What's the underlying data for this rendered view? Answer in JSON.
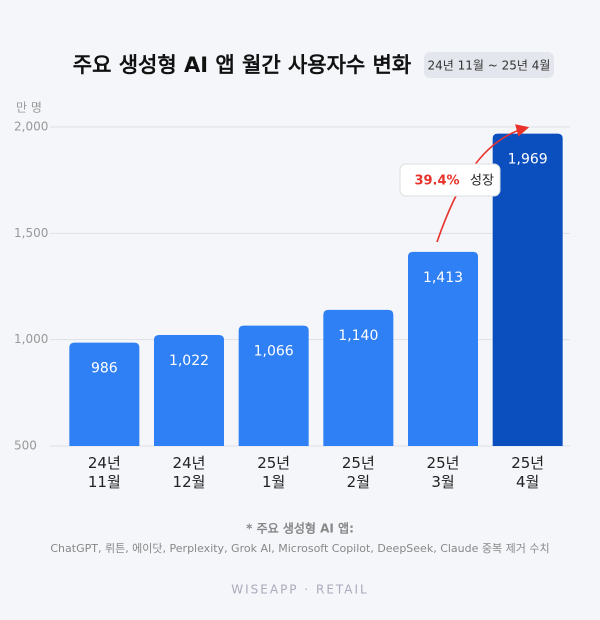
{
  "chart_data": {
    "type": "bar",
    "title": "주요 생성형 AI 앱 월간 사용자수 변화",
    "subtitle": "24년 11월 ~ 25년 4월",
    "y_unit": "만 명",
    "categories": [
      "24년\n11월",
      "24년\n12월",
      "25년\n1월",
      "25년\n2월",
      "25년\n3월",
      "25년\n4월"
    ],
    "values": [
      986,
      1022,
      1066,
      1140,
      1413,
      1969
    ],
    "value_labels": [
      "986",
      "1,022",
      "1,066",
      "1,140",
      "1,413",
      "1,969"
    ],
    "colors": [
      "#2f7ff5",
      "#2f7ff5",
      "#2f7ff5",
      "#2f7ff5",
      "#2f7ff5",
      "#0b4fbf"
    ],
    "ylim": [
      500,
      2000
    ],
    "yticks": [
      500,
      {
        "value": 1000,
        "label": "1,000"
      },
      {
        "value": 1500,
        "label": "1,500"
      },
      {
        "value": 2000,
        "label": "2,000"
      }
    ],
    "grid": true,
    "annotation": {
      "growth": "39.4%",
      "text": "성장"
    },
    "footnote_title": "* 주요 생성형 AI 앱:",
    "footnote": "ChatGPT, 뤼튼, 에이닷, Perplexity, Grok AI, Microsoft Copilot, DeepSeek, Claude 중복 제거 수치",
    "brand": "WISEAPP · RETAIL"
  }
}
